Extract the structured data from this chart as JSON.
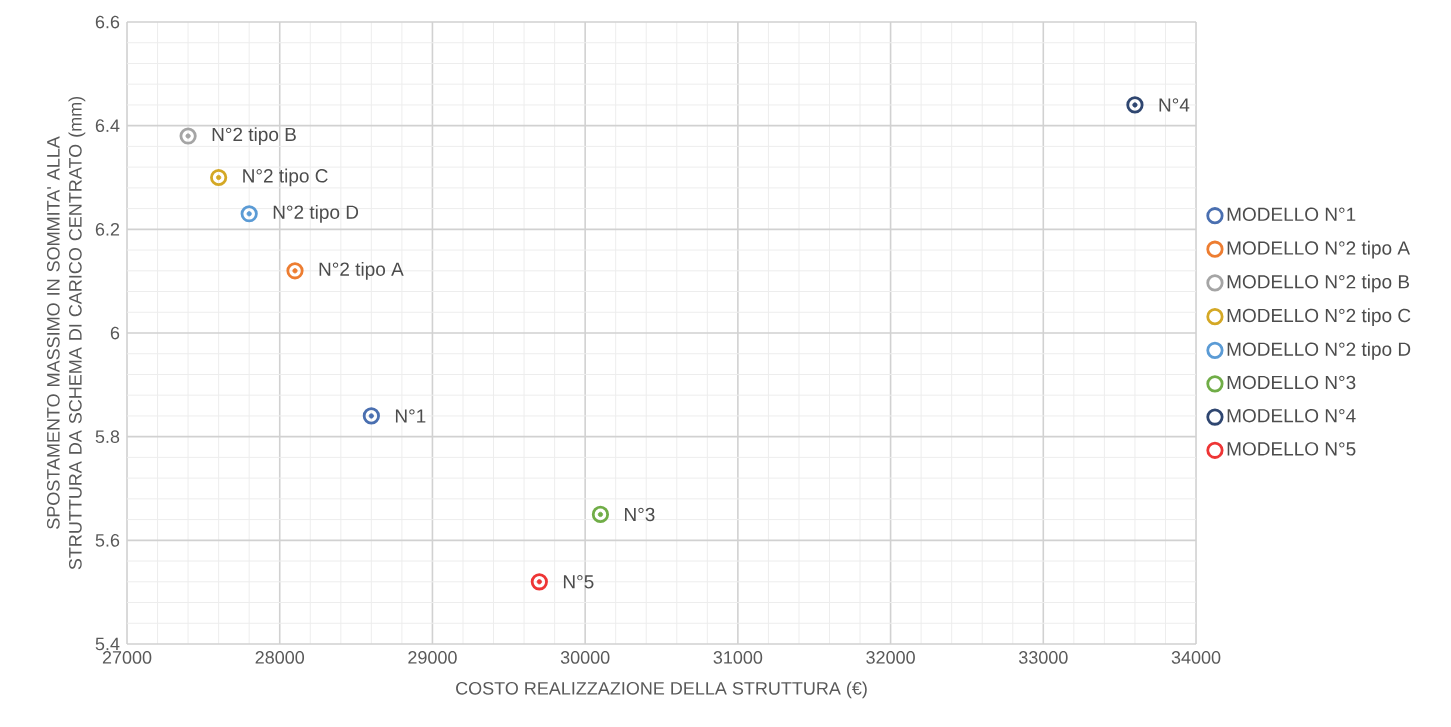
{
  "chart_data": {
    "type": "scatter",
    "xlabel": "COSTO REALIZZAZIONE DELLA STRUTTURA (€)",
    "ylabel": "SPOSTAMENTO MASSIMO IN SOMMITA' ALLA STRUTTURA DA SCHEMA DI CARICO CENTRATO (mm)",
    "xlim": [
      27000,
      34000
    ],
    "ylim": [
      5.4,
      6.6
    ],
    "xticks": [
      27000,
      28000,
      29000,
      30000,
      31000,
      32000,
      33000,
      34000
    ],
    "yticks": [
      5.4,
      5.6,
      5.8,
      6,
      6.2,
      6.4,
      6.6
    ],
    "grid": true,
    "legend": "right",
    "marker": "circle",
    "series": [
      {
        "name": "MODELLO N°1",
        "color": "#4a6fb0",
        "x": [
          28600
        ],
        "values": [
          5.84
        ]
      },
      {
        "name": "MODELLO N°2 tipo A",
        "color": "#ed7d31",
        "x": [
          28100
        ],
        "values": [
          6.12
        ]
      },
      {
        "name": "MODELLO N°2 tipo B",
        "color": "#a5a5a5",
        "x": [
          27400
        ],
        "values": [
          6.38
        ]
      },
      {
        "name": "MODELLO N°2 tipo C",
        "color": "#d4a825",
        "x": [
          27600
        ],
        "values": [
          6.3
        ]
      },
      {
        "name": "MODELLO N°2 tipo D",
        "color": "#5b9bd5",
        "x": [
          27800
        ],
        "values": [
          6.23
        ]
      },
      {
        "name": "MODELLO N°3",
        "color": "#70ad47",
        "x": [
          30100
        ],
        "values": [
          5.65
        ]
      },
      {
        "name": "MODELLO N°4",
        "color": "#2f4670",
        "x": [
          33600
        ],
        "values": [
          6.44
        ]
      },
      {
        "name": "MODELLO N°5",
        "color": "#ee3535",
        "x": [
          29700
        ],
        "values": [
          5.52
        ]
      }
    ],
    "annotations": [
      {
        "text": "N°1",
        "x": 28600,
        "y": 5.84
      },
      {
        "text": "N°2 tipo A",
        "x": 28100,
        "y": 6.12
      },
      {
        "text": "N°2 tipo B",
        "x": 27400,
        "y": 6.38
      },
      {
        "text": "N°2 tipo C",
        "x": 27600,
        "y": 6.3
      },
      {
        "text": "N°2 tipo D",
        "x": 27800,
        "y": 6.23
      },
      {
        "text": "N°3",
        "x": 30100,
        "y": 5.65
      },
      {
        "text": "N°4",
        "x": 33600,
        "y": 6.44
      },
      {
        "text": "N°5",
        "x": 29700,
        "y": 5.52
      }
    ]
  }
}
